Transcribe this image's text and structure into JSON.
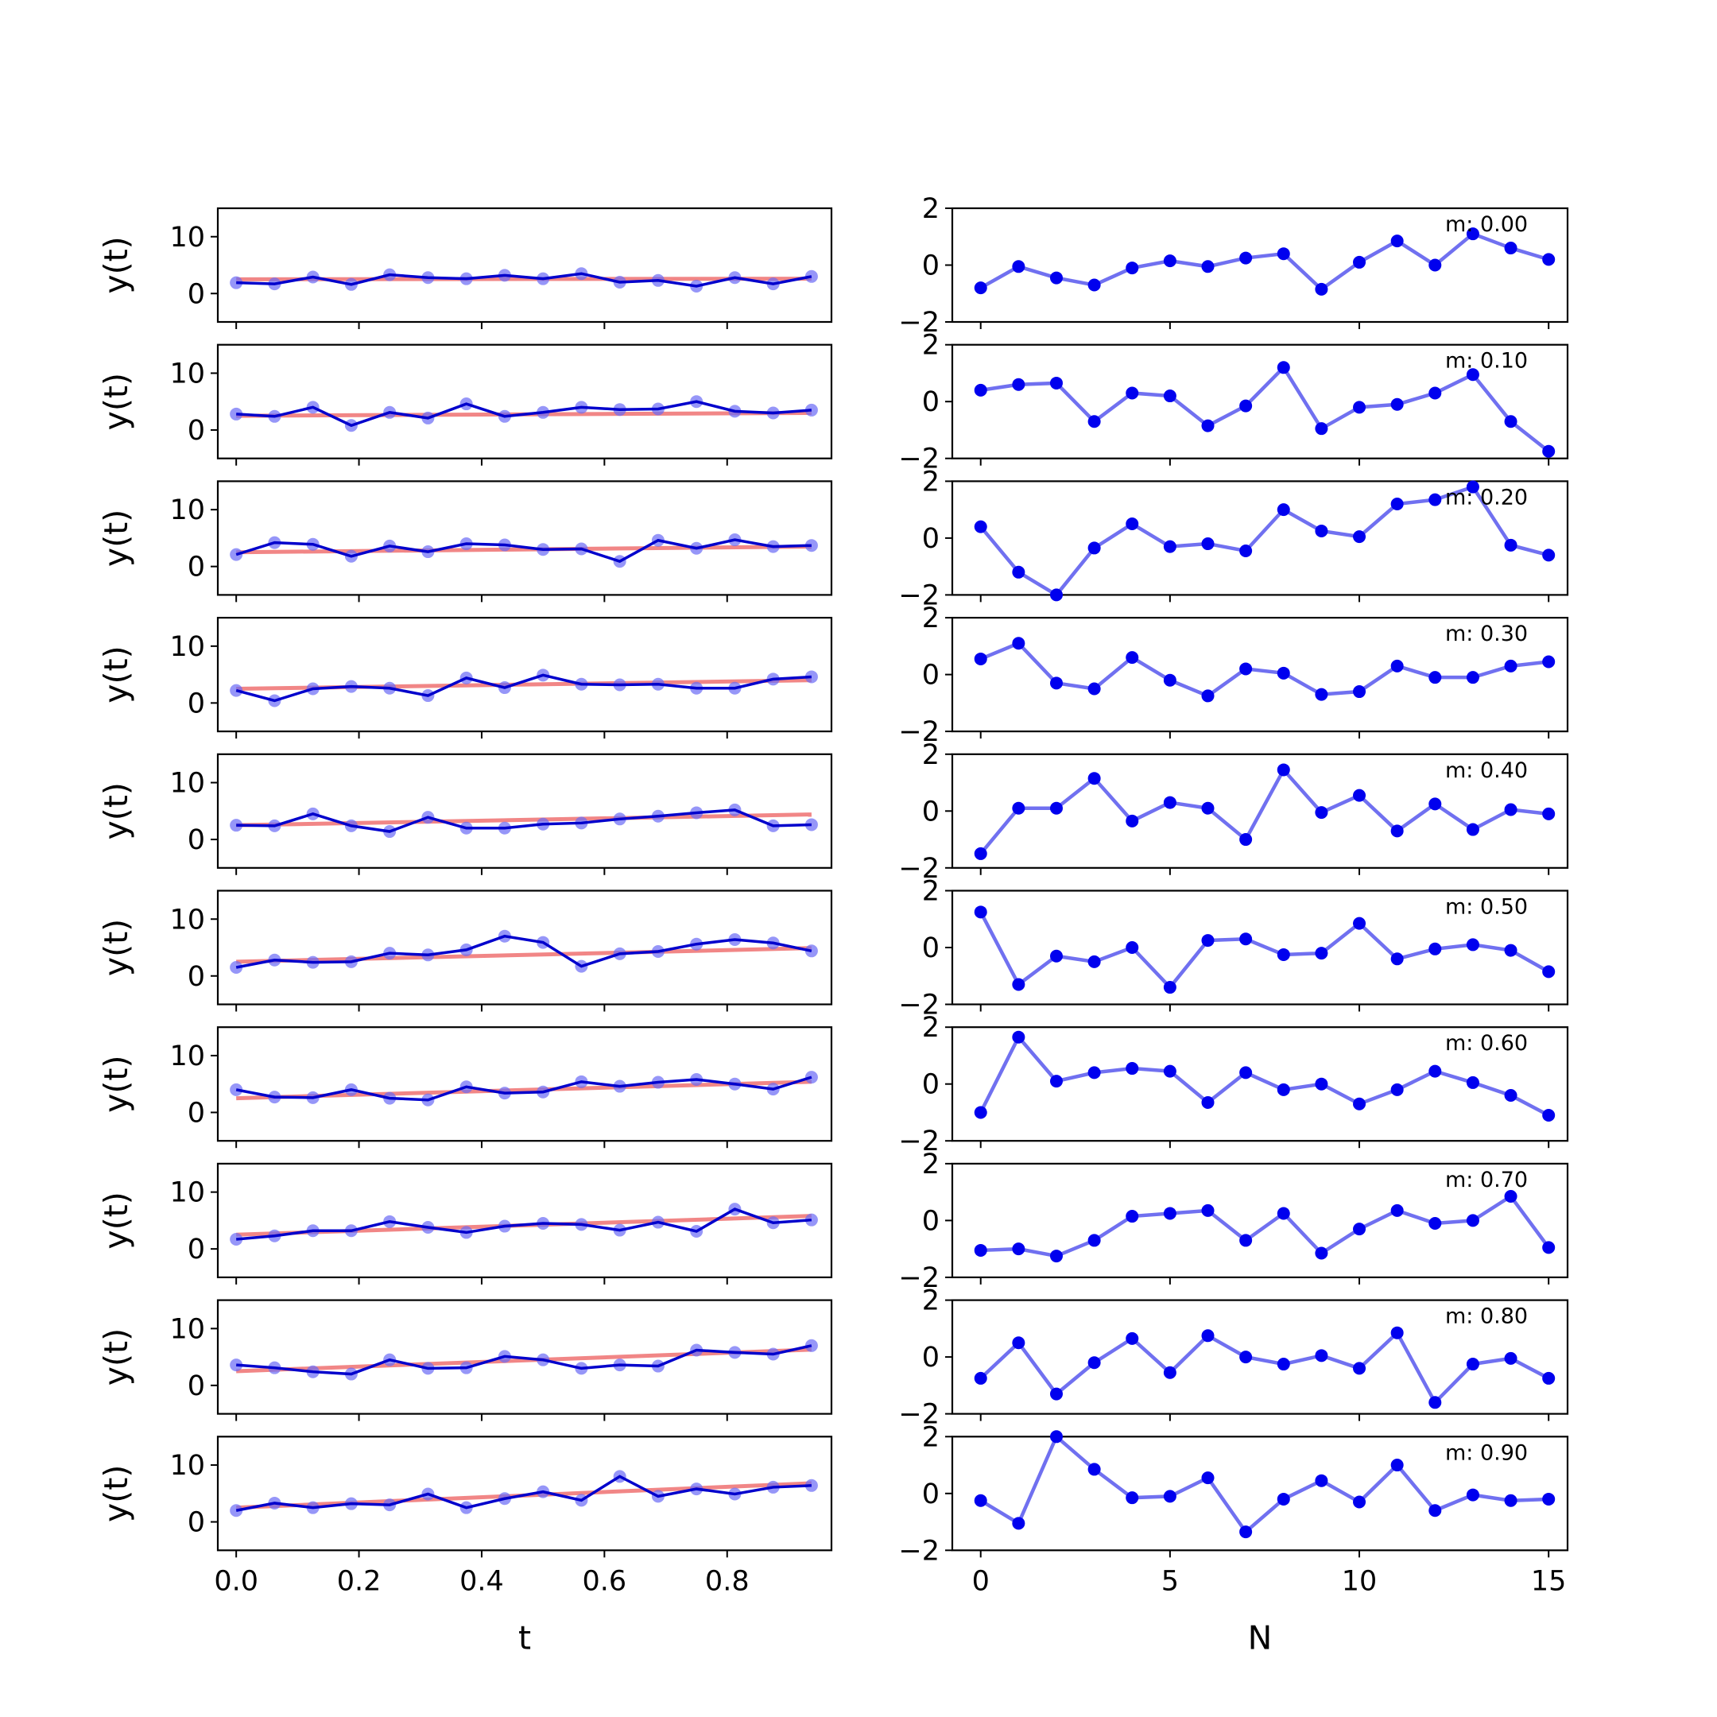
{
  "chart_data": {
    "type": "line",
    "rows": 10,
    "left": {
      "x": [
        0,
        0.0625,
        0.125,
        0.1875,
        0.25,
        0.3125,
        0.375,
        0.4375,
        0.5,
        0.5625,
        0.625,
        0.6875,
        0.75,
        0.8125,
        0.875,
        0.9375
      ],
      "xlim": [
        -0.03,
        0.97
      ],
      "ylim": [
        -5,
        15
      ],
      "xticks": [
        0,
        0.2,
        0.4,
        0.6,
        0.8
      ],
      "xtick_labels": [
        "0.0",
        "0.2",
        "0.4",
        "0.6",
        "0.8"
      ],
      "yticks": [
        0,
        10
      ],
      "ytick_labels": [
        "0",
        "10"
      ],
      "xlabel": "t",
      "ylabel": "y(t)",
      "clipped_right_label": "N",
      "series": [
        {
          "y": [
            1.9,
            1.7,
            2.9,
            1.6,
            3.3,
            2.8,
            2.6,
            3.2,
            2.6,
            3.5,
            2.0,
            2.3,
            1.3,
            2.8,
            1.7,
            3.0
          ],
          "fit": [
            2.5,
            2.6
          ]
        },
        {
          "y": [
            2.8,
            2.4,
            4.0,
            0.8,
            3.1,
            2.1,
            4.6,
            2.4,
            3.1,
            4.0,
            3.6,
            3.7,
            5.0,
            3.3,
            3.0,
            3.5
          ],
          "fit": [
            2.5,
            3.0
          ]
        },
        {
          "y": [
            2.1,
            4.2,
            3.9,
            1.8,
            3.6,
            2.6,
            4.0,
            3.8,
            3.0,
            3.1,
            0.9,
            4.6,
            3.2,
            4.7,
            3.5,
            3.7
          ],
          "fit": [
            2.5,
            3.5
          ]
        },
        {
          "y": [
            2.2,
            0.4,
            2.5,
            2.9,
            2.6,
            1.3,
            4.4,
            2.7,
            4.9,
            3.3,
            3.2,
            3.3,
            2.6,
            2.6,
            4.2,
            4.6
          ],
          "fit": [
            2.5,
            4.0
          ]
        },
        {
          "y": [
            2.5,
            2.4,
            4.5,
            2.4,
            1.4,
            3.9,
            2.0,
            2.0,
            2.7,
            2.9,
            3.6,
            4.1,
            4.7,
            5.2,
            2.4,
            2.6
          ],
          "fit": [
            2.5,
            4.4
          ]
        },
        {
          "y": [
            1.5,
            2.8,
            2.4,
            2.5,
            4.0,
            3.7,
            4.6,
            7.0,
            5.9,
            1.7,
            3.9,
            4.3,
            5.6,
            6.4,
            5.8,
            4.4
          ],
          "fit": [
            2.5,
            4.9
          ]
        },
        {
          "y": [
            4.0,
            2.7,
            2.6,
            4.0,
            2.5,
            2.2,
            4.5,
            3.4,
            3.6,
            5.4,
            4.6,
            5.3,
            5.8,
            5.0,
            4.1,
            6.2
          ],
          "fit": [
            2.5,
            5.4
          ]
        },
        {
          "y": [
            1.7,
            2.3,
            3.2,
            3.2,
            4.8,
            3.8,
            2.9,
            4.0,
            4.5,
            4.3,
            3.3,
            4.7,
            3.1,
            7.0,
            4.6,
            5.1
          ],
          "fit": [
            2.5,
            5.8
          ]
        },
        {
          "y": [
            3.6,
            3.1,
            2.4,
            2.0,
            4.5,
            3.0,
            3.1,
            5.1,
            4.5,
            3.0,
            3.6,
            3.4,
            6.2,
            5.8,
            5.5,
            7.0
          ],
          "fit": [
            2.5,
            6.3
          ]
        },
        {
          "y": [
            2.0,
            3.3,
            2.5,
            3.2,
            3.0,
            4.9,
            2.5,
            4.1,
            5.3,
            3.8,
            8.0,
            4.5,
            5.8,
            4.9,
            6.1,
            6.4
          ],
          "fit": [
            2.5,
            6.8
          ]
        }
      ]
    },
    "right": {
      "x": [
        0,
        1,
        2,
        3,
        4,
        5,
        6,
        7,
        8,
        9,
        10,
        11,
        12,
        13,
        14,
        15
      ],
      "xlim": [
        -0.75,
        15.5
      ],
      "ylim": [
        -2,
        2
      ],
      "xticks": [
        0,
        5,
        10,
        15
      ],
      "xtick_labels": [
        "0",
        "5",
        "10",
        "15"
      ],
      "yticks": [
        -2,
        0,
        2
      ],
      "ytick_labels": [
        "−2",
        "0",
        "2"
      ],
      "xlabel": "N",
      "series": [
        {
          "m": "m: 0.00",
          "y": [
            -0.8,
            -0.05,
            -0.45,
            -0.7,
            -0.1,
            0.15,
            -0.05,
            0.25,
            0.4,
            -0.85,
            0.1,
            0.85,
            0.0,
            1.1,
            0.6,
            0.2
          ]
        },
        {
          "m": "m: 0.10",
          "y": [
            0.4,
            0.6,
            0.65,
            -0.7,
            0.3,
            0.2,
            -0.85,
            -0.15,
            1.2,
            -0.95,
            -0.2,
            -0.1,
            0.3,
            0.95,
            -0.7,
            -1.75
          ]
        },
        {
          "m": "m: 0.20",
          "y": [
            0.4,
            -1.2,
            -2.0,
            -0.35,
            0.5,
            -0.3,
            -0.2,
            -0.45,
            1.0,
            0.25,
            0.05,
            1.2,
            1.35,
            1.8,
            -0.25,
            -0.6
          ]
        },
        {
          "m": "m: 0.30",
          "y": [
            0.55,
            1.1,
            -0.3,
            -0.5,
            0.6,
            -0.2,
            -0.75,
            0.2,
            0.05,
            -0.7,
            -0.6,
            0.3,
            -0.1,
            -0.1,
            0.3,
            0.45
          ]
        },
        {
          "m": "m: 0.40",
          "y": [
            -1.5,
            0.1,
            0.1,
            1.15,
            -0.35,
            0.3,
            0.1,
            -1.0,
            1.45,
            -0.05,
            0.55,
            -0.7,
            0.25,
            -0.65,
            0.05,
            -0.1
          ]
        },
        {
          "m": "m: 0.50",
          "y": [
            1.25,
            -1.3,
            -0.3,
            -0.5,
            0.0,
            -1.4,
            0.25,
            0.3,
            -0.25,
            -0.2,
            0.85,
            -0.4,
            -0.05,
            0.1,
            -0.1,
            -0.85
          ]
        },
        {
          "m": "m: 0.60",
          "y": [
            -1.0,
            1.65,
            0.1,
            0.4,
            0.55,
            0.45,
            -0.65,
            0.4,
            -0.2,
            0.0,
            -0.7,
            -0.2,
            0.45,
            0.05,
            -0.4,
            -1.1
          ]
        },
        {
          "m": "m: 0.70",
          "y": [
            -1.05,
            -1.0,
            -1.25,
            -0.7,
            0.15,
            0.25,
            0.35,
            -0.7,
            0.25,
            -1.15,
            -0.3,
            0.35,
            -0.1,
            0.0,
            0.85,
            -0.95
          ]
        },
        {
          "m": "m: 0.80",
          "y": [
            -0.75,
            0.5,
            -1.3,
            -0.2,
            0.65,
            -0.55,
            0.75,
            0.0,
            -0.25,
            0.05,
            -0.4,
            0.85,
            -1.6,
            -0.25,
            -0.05,
            -0.75
          ]
        },
        {
          "m": "m: 0.90",
          "y": [
            -0.25,
            -1.05,
            2.0,
            0.85,
            -0.15,
            -0.1,
            0.55,
            -1.35,
            -0.2,
            0.45,
            -0.3,
            1.0,
            -0.6,
            -0.05,
            -0.25,
            -0.2
          ]
        }
      ]
    }
  }
}
